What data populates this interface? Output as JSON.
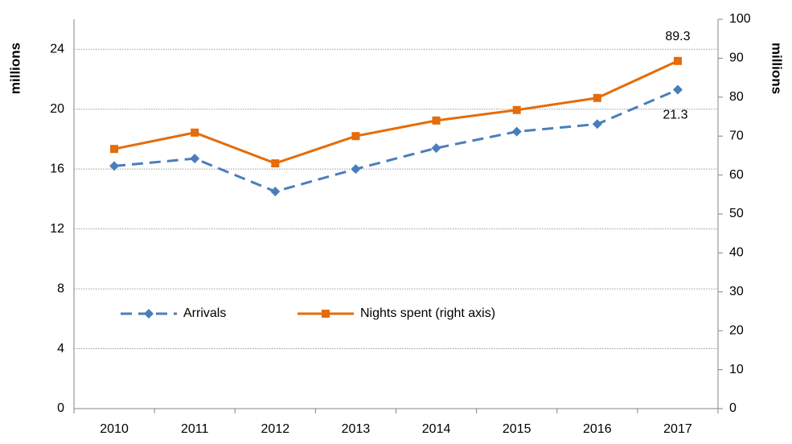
{
  "chart_data": {
    "type": "line",
    "categories": [
      "2010",
      "2011",
      "2012",
      "2013",
      "2014",
      "2015",
      "2016",
      "2017"
    ],
    "y_label": "millions",
    "y2_label": "millions",
    "series": [
      {
        "name": "Arrivals",
        "color": "#4a7ebb",
        "dash": true,
        "marker": "diamond",
        "values": [
          16.2,
          16.7,
          14.5,
          16.0,
          17.4,
          18.5,
          19.0,
          21.3
        ]
      },
      {
        "name": "Nights spent (right axis)",
        "color": "#e46c0a",
        "dash": false,
        "marker": "square",
        "axis": "y2",
        "values": [
          66.7,
          70.9,
          63.0,
          70.0,
          74.0,
          76.7,
          79.8,
          89.3
        ]
      }
    ],
    "ylim": [
      0,
      26
    ],
    "yticks": [
      0,
      4,
      8,
      12,
      16,
      20,
      24
    ],
    "y2lim": [
      0,
      100
    ],
    "y2ticks": [
      0,
      10,
      20,
      30,
      40,
      50,
      60,
      70,
      80,
      90,
      100
    ],
    "grid": true,
    "label_last": true
  }
}
